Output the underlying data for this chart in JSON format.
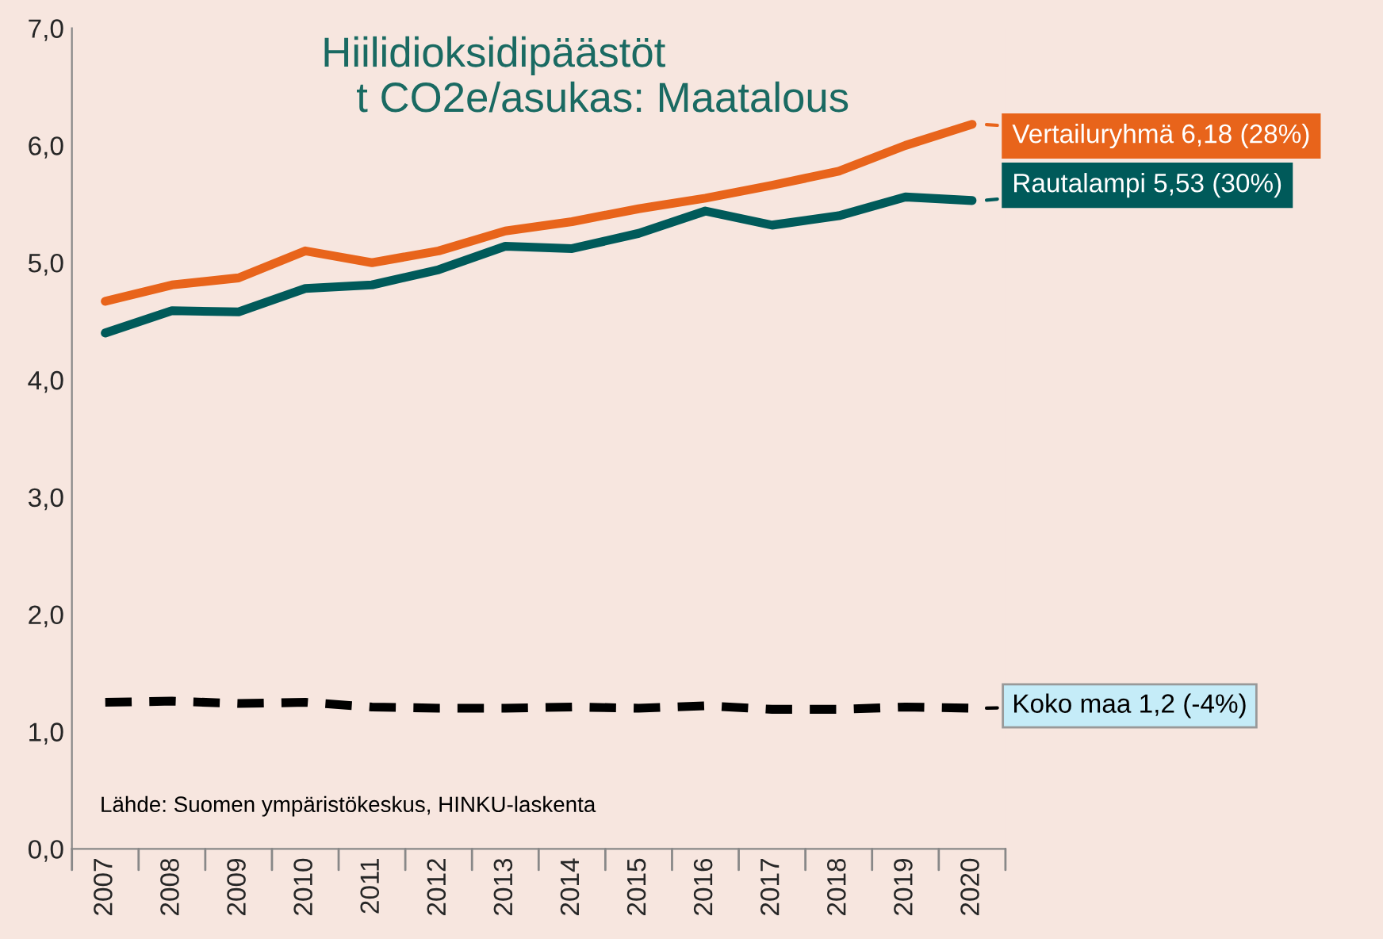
{
  "chart_data": {
    "type": "line",
    "title": "Hiilidioksidipäästöt\n   t CO2e/asukas: Maatalous",
    "categories": [
      "2007",
      "2008",
      "2009",
      "2010",
      "2011",
      "2012",
      "2013",
      "2014",
      "2015",
      "2016",
      "2017",
      "2018",
      "2019",
      "2020"
    ],
    "series": [
      {
        "name": "Vertailuryhmä 6,18 (28%)",
        "color": "#e8641b",
        "line_style": "solid",
        "values": [
          4.67,
          4.81,
          4.87,
          5.1,
          5.0,
          5.1,
          5.27,
          5.35,
          5.46,
          5.55,
          5.66,
          5.78,
          6.0,
          6.18
        ]
      },
      {
        "name": "Rautalampi 5,53 (30%)",
        "color": "#005a5a",
        "line_style": "solid",
        "values": [
          4.4,
          4.59,
          4.58,
          4.78,
          4.81,
          4.94,
          5.14,
          5.12,
          5.25,
          5.44,
          5.32,
          5.4,
          5.56,
          5.53
        ]
      },
      {
        "name": "Koko maa 1,2 (-4%)",
        "color": "#000000",
        "line_style": "dashed",
        "values": [
          1.25,
          1.26,
          1.24,
          1.25,
          1.21,
          1.2,
          1.2,
          1.21,
          1.2,
          1.22,
          1.19,
          1.19,
          1.21,
          1.2
        ]
      }
    ],
    "ylim": [
      0,
      7
    ],
    "yticks": [
      {
        "value": 0,
        "label": "0,0"
      },
      {
        "value": 1,
        "label": "1,0"
      },
      {
        "value": 2,
        "label": "2,0"
      },
      {
        "value": 3,
        "label": "3,0"
      },
      {
        "value": 4,
        "label": "4,0"
      },
      {
        "value": 5,
        "label": "5,0"
      },
      {
        "value": 6,
        "label": "6,0"
      },
      {
        "value": 7,
        "label": "7,0"
      }
    ],
    "annotations": [
      "Lähde: Suomen ympäristökeskus, HINKU-laskenta"
    ],
    "grid": false,
    "legend": "right",
    "marker": "none"
  }
}
